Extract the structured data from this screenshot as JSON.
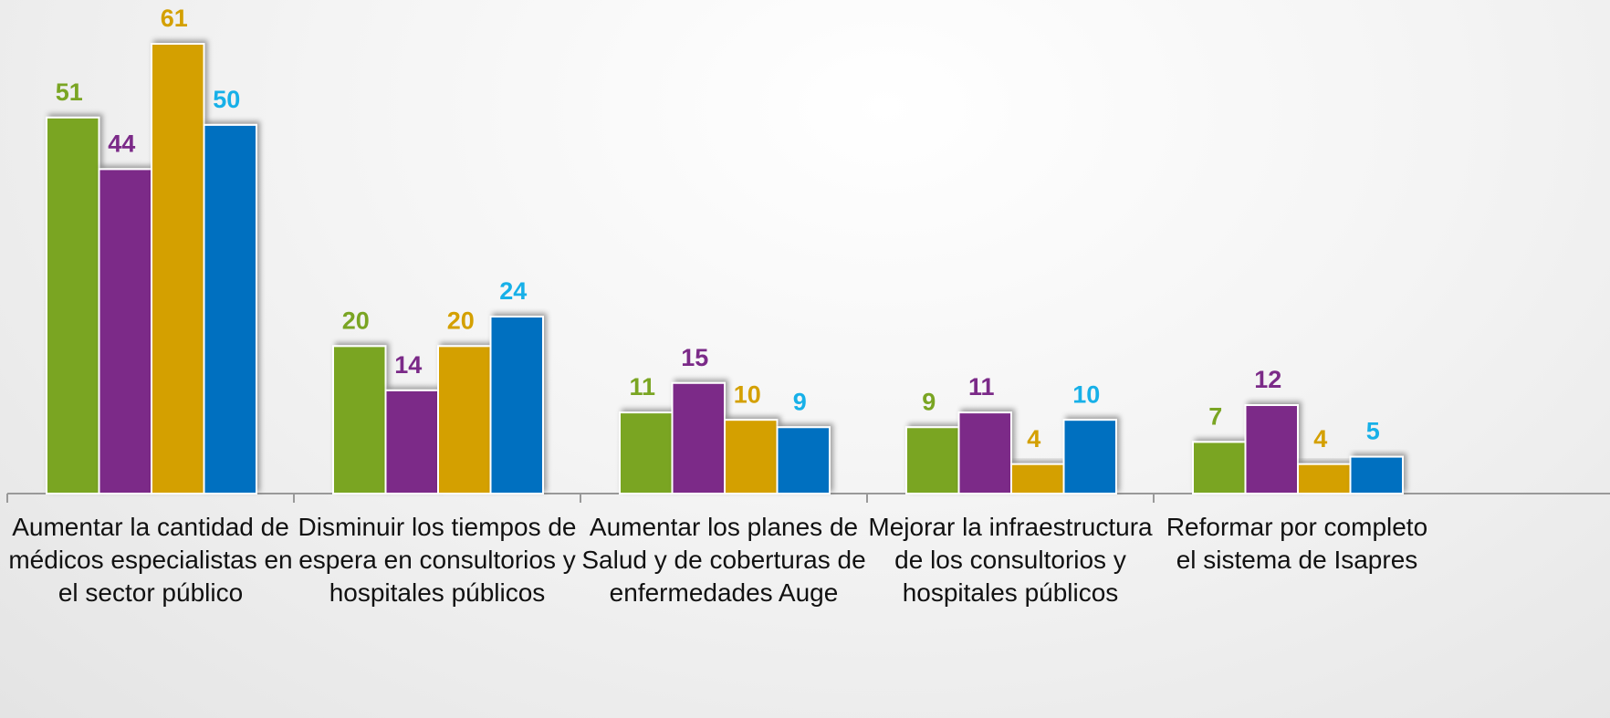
{
  "chart_data": {
    "type": "bar",
    "categories": [
      "Aumentar la cantidad de médicos especialistas en el sector público",
      "Disminuir los tiempos de espera en consultorios y hospitales públicos",
      "Aumentar los planes de Salud y de coberturas de enfermedades Auge",
      "Mejorar la infraestructura de los consultorios y hospitales públicos",
      "Reformar por completo el sistema de Isapres"
    ],
    "series": [
      {
        "color": "#7aa523",
        "label_color": "#7aa523",
        "values": [
          51,
          20,
          11,
          9,
          7
        ]
      },
      {
        "color": "#7b2a88",
        "label_color": "#7b2a88",
        "values": [
          44,
          14,
          15,
          11,
          12
        ]
      },
      {
        "color": "#d4a000",
        "label_color": "#d4a000",
        "values": [
          61,
          20,
          10,
          4,
          4
        ]
      },
      {
        "color": "#0070c0",
        "label_color": "#17b0e8",
        "values": [
          50,
          24,
          9,
          10,
          5
        ]
      }
    ]
  }
}
